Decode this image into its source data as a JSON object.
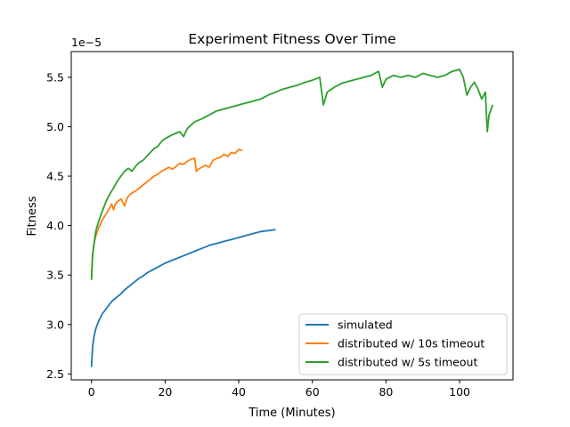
{
  "chart_data": {
    "type": "line",
    "title": "Experiment Fitness Over Time",
    "xlabel": "Time (Minutes)",
    "ylabel": "Fitness",
    "y_multiplier_label": "1e−5",
    "xlim": [
      -5.5,
      114.5
    ],
    "ylim": [
      2.44,
      5.76
    ],
    "xticks": [
      0,
      20,
      40,
      60,
      80,
      100
    ],
    "yticks": [
      2.5,
      3.0,
      3.5,
      4.0,
      4.5,
      5.0,
      5.5
    ],
    "xtick_labels": [
      "0",
      "20",
      "40",
      "60",
      "80",
      "100"
    ],
    "ytick_labels": [
      "2.5",
      "3.0",
      "3.5",
      "4.0",
      "4.5",
      "5.0",
      "5.5"
    ],
    "grid": false,
    "legend_position": "lower-right",
    "series": [
      {
        "name": "simulated",
        "color": "#1f77b4",
        "x": [
          0,
          0.3,
          0.7,
          1.2,
          2,
          3,
          4,
          5,
          6,
          7,
          8,
          9,
          10,
          11,
          12,
          13,
          14,
          15,
          16,
          18,
          20,
          22,
          24,
          26,
          28,
          30,
          32,
          34,
          36,
          38,
          40,
          42,
          44,
          46,
          48,
          50
        ],
        "y": [
          2.57,
          2.78,
          2.88,
          2.96,
          3.04,
          3.11,
          3.16,
          3.21,
          3.25,
          3.28,
          3.31,
          3.35,
          3.38,
          3.41,
          3.44,
          3.47,
          3.49,
          3.52,
          3.54,
          3.58,
          3.62,
          3.65,
          3.68,
          3.71,
          3.74,
          3.77,
          3.8,
          3.82,
          3.84,
          3.86,
          3.88,
          3.9,
          3.92,
          3.94,
          3.95,
          3.96
        ]
      },
      {
        "name": "distributed w/ 10s timeout",
        "color": "#ff7f0e",
        "x": [
          0,
          0.3,
          0.7,
          1.2,
          2,
          3,
          4,
          5,
          5.5,
          6,
          6.5,
          7,
          8,
          9,
          9.5,
          10,
          11,
          12,
          13,
          14,
          15,
          16,
          17,
          18,
          19,
          20,
          21,
          22,
          23,
          24,
          25,
          26,
          27,
          28,
          28.5,
          29,
          30,
          31,
          32,
          33,
          34,
          35,
          36,
          37,
          38,
          39,
          40,
          41
        ],
        "y": [
          3.48,
          3.72,
          3.82,
          3.9,
          3.98,
          4.06,
          4.12,
          4.18,
          4.22,
          4.16,
          4.22,
          4.24,
          4.27,
          4.2,
          4.26,
          4.3,
          4.33,
          4.35,
          4.38,
          4.41,
          4.44,
          4.47,
          4.5,
          4.52,
          4.55,
          4.57,
          4.59,
          4.57,
          4.6,
          4.63,
          4.62,
          4.65,
          4.67,
          4.68,
          4.55,
          4.57,
          4.59,
          4.61,
          4.59,
          4.66,
          4.68,
          4.69,
          4.72,
          4.7,
          4.74,
          4.73,
          4.77,
          4.76
        ]
      },
      {
        "name": "distributed w/ 5s timeout",
        "color": "#2ca02c",
        "x": [
          0,
          0.3,
          0.7,
          1.2,
          2,
          3,
          4,
          5,
          6,
          7,
          8,
          9,
          10,
          11,
          12,
          13,
          14,
          15,
          16,
          17,
          18,
          19,
          20,
          22,
          24,
          25,
          26,
          28,
          30,
          32,
          34,
          36,
          38,
          40,
          42,
          44,
          46,
          48,
          50,
          52,
          54,
          56,
          58,
          60,
          62,
          63,
          64,
          66,
          68,
          70,
          72,
          74,
          76,
          78,
          79,
          80,
          82,
          84,
          86,
          88,
          90,
          92,
          94,
          96,
          98,
          100,
          101,
          102,
          103,
          104,
          105,
          106,
          107,
          107.5,
          108,
          109
        ],
        "y": [
          3.45,
          3.7,
          3.82,
          3.95,
          4.05,
          4.15,
          4.25,
          4.32,
          4.38,
          4.45,
          4.5,
          4.55,
          4.58,
          4.55,
          4.6,
          4.64,
          4.66,
          4.7,
          4.74,
          4.78,
          4.8,
          4.85,
          4.88,
          4.92,
          4.95,
          4.9,
          4.98,
          5.05,
          5.08,
          5.12,
          5.16,
          5.18,
          5.2,
          5.22,
          5.24,
          5.26,
          5.28,
          5.32,
          5.35,
          5.38,
          5.4,
          5.42,
          5.45,
          5.47,
          5.5,
          5.22,
          5.35,
          5.4,
          5.44,
          5.46,
          5.48,
          5.5,
          5.52,
          5.56,
          5.4,
          5.48,
          5.52,
          5.5,
          5.52,
          5.5,
          5.54,
          5.52,
          5.5,
          5.52,
          5.56,
          5.58,
          5.5,
          5.32,
          5.4,
          5.45,
          5.38,
          5.28,
          5.35,
          4.95,
          5.12,
          5.22
        ]
      }
    ]
  }
}
